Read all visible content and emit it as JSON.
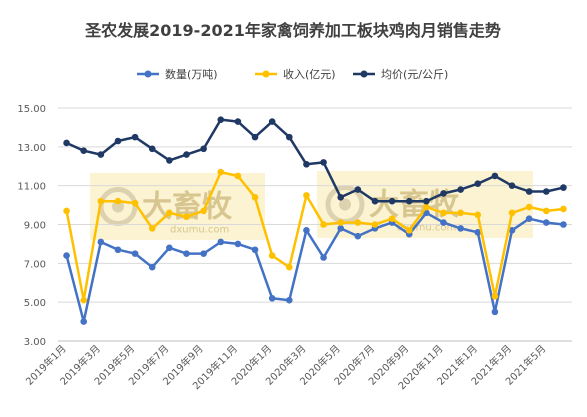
{
  "chart_data": {
    "type": "line",
    "title": "圣农发展2019-2021年家禽饲养加工板块鸡肉月销售走势",
    "xlabel": "",
    "ylabel": "",
    "ylim": [
      3.0,
      15.0
    ],
    "yticks": [
      "3.00",
      "5.00",
      "7.00",
      "9.00",
      "11.00",
      "13.00",
      "15.00"
    ],
    "grid": true,
    "legend_position": "top",
    "x": [
      "2019年1月",
      "2019年2月",
      "2019年3月",
      "2019年4月",
      "2019年5月",
      "2019年6月",
      "2019年7月",
      "2019年8月",
      "2019年9月",
      "2019年10月",
      "2019年11月",
      "2019年12月",
      "2020年1月",
      "2020年2月",
      "2020年3月",
      "2020年4月",
      "2020年5月",
      "2020年6月",
      "2020年7月",
      "2020年8月",
      "2020年9月",
      "2020年10月",
      "2020年11月",
      "2020年12月",
      "2021年1月",
      "2021年2月",
      "2021年3月",
      "2021年4月",
      "2021年5月",
      "2021年6月"
    ],
    "x_tick_labels": [
      "2019年1月",
      "2019年3月",
      "2019年5月",
      "2019年7月",
      "2019年9月",
      "2019年11月",
      "2020年1月",
      "2020年3月",
      "2020年5月",
      "2020年7月",
      "2020年9月",
      "2020年11月",
      "2021年1月",
      "2021年3月",
      "2021年5月"
    ],
    "series": [
      {
        "name": "数量(万吨)",
        "color": "#4472c4",
        "values": [
          7.4,
          4.0,
          8.1,
          7.7,
          7.5,
          6.8,
          7.8,
          7.5,
          7.5,
          8.1,
          8.0,
          7.7,
          5.2,
          5.1,
          8.7,
          7.3,
          8.8,
          8.4,
          8.8,
          9.1,
          8.5,
          9.6,
          9.1,
          8.8,
          8.6,
          4.5,
          8.7,
          9.3,
          9.1,
          9.0
        ]
      },
      {
        "name": "收入(亿元)",
        "color": "#ffc000",
        "values": [
          9.7,
          5.1,
          10.2,
          10.2,
          10.1,
          8.8,
          9.6,
          9.4,
          9.7,
          11.7,
          11.5,
          10.4,
          7.4,
          6.8,
          10.5,
          9.0,
          9.1,
          9.1,
          9.0,
          9.3,
          8.7,
          9.9,
          9.6,
          9.6,
          9.5,
          5.3,
          9.6,
          9.9,
          9.7,
          9.8
        ]
      },
      {
        "name": "均价(元/公斤)",
        "color": "#1f3864",
        "values": [
          13.2,
          12.8,
          12.6,
          13.3,
          13.5,
          12.9,
          12.3,
          12.6,
          12.9,
          14.4,
          14.3,
          13.5,
          14.3,
          13.5,
          12.1,
          12.2,
          10.4,
          10.8,
          10.2,
          10.2,
          10.2,
          10.2,
          10.6,
          10.8,
          11.1,
          11.5,
          11.0,
          10.7,
          10.7,
          10.9
        ]
      }
    ]
  },
  "watermark": {
    "brand": "大畜牧",
    "url": "dxumu.com"
  }
}
